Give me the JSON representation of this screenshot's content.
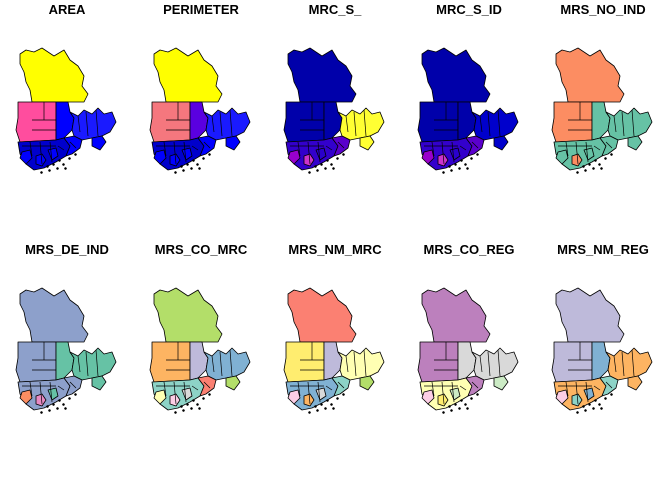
{
  "panels": [
    {
      "title": "AREA",
      "colors": {
        "north": "#ffff00",
        "west": "#ff4d9e",
        "center": "#0000ff",
        "east": "#1a1aff",
        "south": "#0000cc",
        "southeast": "#0000ff",
        "tail": "#0000ff",
        "small1": "#0000ff",
        "small2": "#0000ff",
        "small3": "#0000ff"
      }
    },
    {
      "title": "PERIMETER",
      "colors": {
        "north": "#ffff00",
        "west": "#f5777e",
        "center": "#5a00e0",
        "east": "#1a1aff",
        "south": "#0000cc",
        "southeast": "#0000ff",
        "tail": "#0000ff",
        "small1": "#0000ff",
        "small2": "#0000ff",
        "small3": "#0000ff"
      }
    },
    {
      "title": "MRC_S_",
      "colors": {
        "north": "#0000aa",
        "west": "#0000aa",
        "center": "#0000aa",
        "east": "#ffff33",
        "south": "#3300cc",
        "southeast": "#ffff33",
        "tail": "#5a00cc",
        "small1": "#9900cc",
        "small2": "#cc33cc",
        "small3": "#2a00cc"
      }
    },
    {
      "title": "MRC_S_ID",
      "colors": {
        "north": "#0000aa",
        "west": "#0000aa",
        "center": "#0000aa",
        "east": "#0000cc",
        "south": "#3300cc",
        "southeast": "#0000cc",
        "tail": "#5a00cc",
        "small1": "#9900cc",
        "small2": "#cc33cc",
        "small3": "#2a00cc"
      }
    },
    {
      "title": "MRS_NO_IND",
      "colors": {
        "north": "#fc8d62",
        "west": "#fc8d62",
        "center": "#66c2a5",
        "east": "#66c2a5",
        "south": "#66c2a5",
        "southeast": "#66c2a5",
        "tail": "#66c2a5",
        "small1": "#66c2a5",
        "small2": "#fc8d62",
        "small3": "#66c2a5"
      }
    },
    {
      "title": "MRS_DE_IND",
      "colors": {
        "north": "#8da0cb",
        "west": "#8da0cb",
        "center": "#66c2a5",
        "east": "#66c2a5",
        "south": "#8da0cb",
        "southeast": "#66c2a5",
        "tail": "#8da0cb",
        "small1": "#fc8d62",
        "small2": "#e78ac3",
        "small3": "#66c2a5"
      }
    },
    {
      "title": "MRS_CO_MRC",
      "colors": {
        "north": "#b3de69",
        "west": "#fdb462",
        "center": "#bebada",
        "east": "#80b1d3",
        "south": "#8dd3c7",
        "southeast": "#b3de69",
        "tail": "#fb8072",
        "small1": "#ffffb3",
        "small2": "#fccde5",
        "small3": "#d9d9d9"
      }
    },
    {
      "title": "MRS_NM_MRC",
      "colors": {
        "north": "#fb8072",
        "west": "#ffed6f",
        "center": "#bebada",
        "east": "#ffffb3",
        "south": "#80b1d3",
        "southeast": "#b3de69",
        "tail": "#8dd3c7",
        "small1": "#fccde5",
        "small2": "#fdb462",
        "small3": "#d9d9d9"
      }
    },
    {
      "title": "MRS_CO_REG",
      "colors": {
        "north": "#bc80bd",
        "west": "#bc80bd",
        "center": "#d9d9d9",
        "east": "#d9d9d9",
        "south": "#ffffb3",
        "southeast": "#ccebc5",
        "tail": "#bc80bd",
        "small1": "#fccde5",
        "small2": "#ffed6f",
        "small3": "#ccebc5"
      }
    },
    {
      "title": "MRS_NM_REG",
      "colors": {
        "north": "#bebada",
        "west": "#bebada",
        "center": "#80b1d3",
        "east": "#fdb462",
        "south": "#fdb462",
        "southeast": "#fdb462",
        "tail": "#8dd3c7",
        "small1": "#fccde5",
        "small2": "#8dd3c7",
        "small3": "#80b1d3"
      }
    }
  ]
}
